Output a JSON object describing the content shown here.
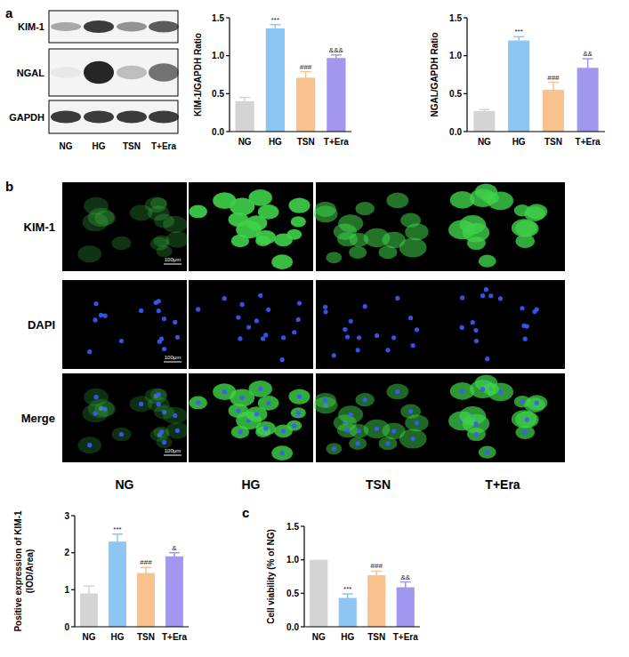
{
  "panel_labels": [
    "a",
    "b",
    "c"
  ],
  "blot": {
    "rows": [
      "KIM-1",
      "NGAL",
      "GAPDH"
    ],
    "lanes": [
      "NG",
      "HG",
      "TSN",
      "T+Era"
    ]
  },
  "micrographs": {
    "rows": [
      "KIM-1",
      "DAPI",
      "Merge"
    ],
    "columns": [
      "NG",
      "HG",
      "TSN",
      "T+Era"
    ],
    "scale_bar": "100μm"
  },
  "chart_data": [
    {
      "type": "bar",
      "ylabel": "KIM-1/GAPDH Ratio",
      "categories": [
        "NG",
        "HG",
        "TSN",
        "T+Era"
      ],
      "values": [
        0.4,
        1.36,
        0.71,
        0.97
      ],
      "errors": [
        0.05,
        0.05,
        0.08,
        0.04
      ],
      "annotations": [
        null,
        "***",
        "###",
        "&&&"
      ],
      "colors": [
        "#d4d4d4",
        "#8ec5f2",
        "#f8c28f",
        "#a297ef"
      ],
      "ylim": [
        0,
        1.5
      ],
      "yticks": [
        {
          "value": 0,
          "label": "0.0"
        },
        {
          "value": 0.5,
          "label": "0.5"
        },
        {
          "value": 1,
          "label": "1.0"
        },
        {
          "value": 1.5,
          "label": "1.5"
        }
      ]
    },
    {
      "type": "bar",
      "ylabel": "NGAL/GAPDH Ratio",
      "categories": [
        "NG",
        "HG",
        "TSN",
        "T+Era"
      ],
      "values": [
        0.27,
        1.2,
        0.55,
        0.84
      ],
      "errors": [
        0.02,
        0.05,
        0.1,
        0.12
      ],
      "annotations": [
        null,
        "***",
        "###",
        "&&"
      ],
      "colors": [
        "#d4d4d4",
        "#8ec5f2",
        "#f8c28f",
        "#a297ef"
      ],
      "ylim": [
        0,
        1.5
      ],
      "yticks": [
        {
          "value": 0,
          "label": "0.0"
        },
        {
          "value": 0.5,
          "label": "0.5"
        },
        {
          "value": 1,
          "label": "1.0"
        },
        {
          "value": 1.5,
          "label": "1.5"
        }
      ]
    },
    {
      "type": "bar",
      "ylabel": "Positive expression of  KIM-1\n(IOD/Area)",
      "categories": [
        "NG",
        "HG",
        "TSN",
        "T+Era"
      ],
      "values": [
        0.9,
        2.3,
        1.45,
        1.9
      ],
      "errors": [
        0.2,
        0.2,
        0.15,
        0.1
      ],
      "annotations": [
        null,
        "***",
        "###",
        "&"
      ],
      "colors": [
        "#d4d4d4",
        "#8ec5f2",
        "#f8c28f",
        "#a297ef"
      ],
      "ylim": [
        0,
        3
      ],
      "yticks": [
        0,
        1,
        2,
        3
      ]
    },
    {
      "type": "bar",
      "ylabel": "Cell viability (% of NG)",
      "categories": [
        "NG",
        "HG",
        "TSN",
        "T+Era"
      ],
      "values": [
        1.0,
        0.43,
        0.77,
        0.59
      ],
      "errors": [
        0,
        0.06,
        0.06,
        0.08
      ],
      "annotations": [
        null,
        "***",
        "###",
        "&&"
      ],
      "colors": [
        "#d4d4d4",
        "#8ec5f2",
        "#f8c28f",
        "#a297ef"
      ],
      "ylim": [
        0,
        1.5
      ],
      "yticks": [
        {
          "value": 0,
          "label": "0.0"
        },
        {
          "value": 0.5,
          "label": "0.5"
        },
        {
          "value": 1,
          "label": "1.0"
        },
        {
          "value": 1.5,
          "label": "1.5"
        }
      ]
    }
  ]
}
